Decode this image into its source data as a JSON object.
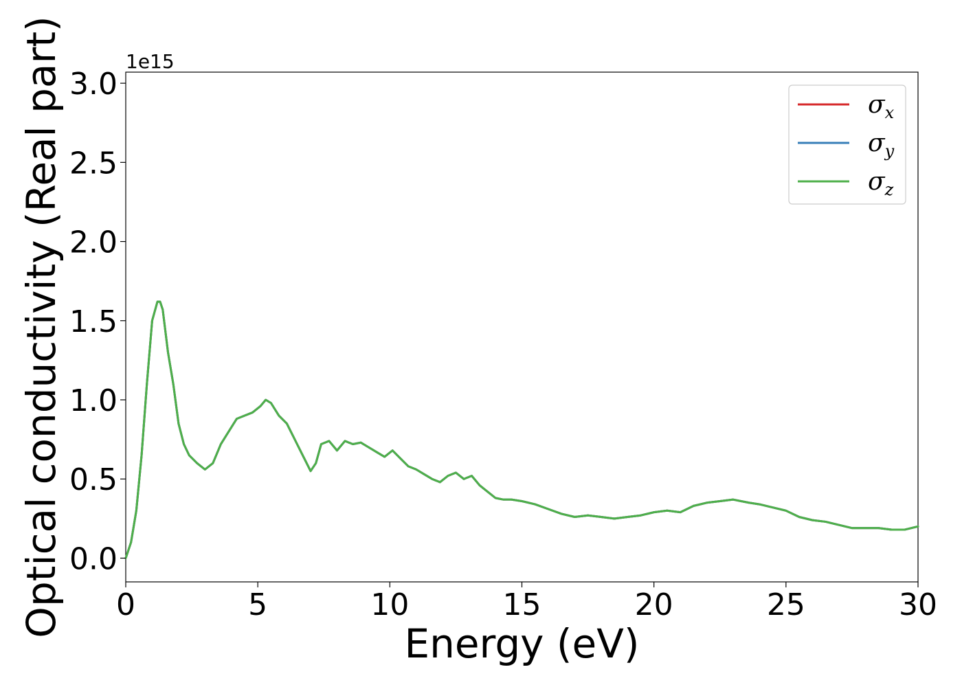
{
  "chart_data": {
    "type": "line",
    "title": "",
    "xlabel": "Energy (eV)",
    "ylabel": "Optical conductivity (Real part)",
    "y_offset_label": "1e15",
    "xlim": [
      0,
      30
    ],
    "ylim": [
      -0.15,
      3.07
    ],
    "x_ticks": [
      0,
      5,
      10,
      15,
      20,
      25,
      30
    ],
    "x_tick_labels": [
      "0",
      "5",
      "10",
      "15",
      "20",
      "25",
      "30"
    ],
    "y_ticks": [
      0.0,
      0.5,
      1.0,
      1.5,
      2.0,
      2.5,
      3.0
    ],
    "y_tick_labels": [
      "0.0",
      "0.5",
      "1.0",
      "1.5",
      "2.0",
      "2.5",
      "3.0"
    ],
    "grid": false,
    "legend_position": "top-right",
    "x": [
      0,
      0.2,
      0.4,
      0.6,
      0.8,
      1.0,
      1.2,
      1.3,
      1.4,
      1.6,
      1.8,
      2.0,
      2.2,
      2.4,
      2.7,
      3.0,
      3.3,
      3.6,
      3.9,
      4.2,
      4.5,
      4.8,
      5.1,
      5.3,
      5.5,
      5.8,
      6.1,
      6.4,
      6.7,
      7.0,
      7.2,
      7.4,
      7.7,
      8.0,
      8.3,
      8.6,
      8.9,
      9.2,
      9.5,
      9.8,
      10.1,
      10.4,
      10.7,
      11.0,
      11.3,
      11.6,
      11.9,
      12.2,
      12.5,
      12.8,
      13.1,
      13.4,
      13.7,
      14.0,
      14.3,
      14.6,
      15.0,
      15.5,
      16.0,
      16.5,
      17.0,
      17.5,
      18.0,
      18.5,
      19.0,
      19.5,
      20.0,
      20.5,
      21.0,
      21.5,
      22.0,
      22.5,
      23.0,
      23.3,
      23.6,
      24.0,
      24.5,
      25.0,
      25.5,
      26.0,
      26.5,
      27.0,
      27.5,
      28.0,
      28.5,
      29.0,
      29.5,
      30.0
    ],
    "series": [
      {
        "name": "σx",
        "color": "#d62728",
        "values": [
          0.0,
          0.1,
          0.3,
          0.65,
          1.1,
          1.5,
          1.62,
          1.62,
          1.57,
          1.3,
          1.1,
          0.85,
          0.72,
          0.65,
          0.6,
          0.56,
          0.6,
          0.72,
          0.8,
          0.88,
          0.9,
          0.92,
          0.96,
          1.0,
          0.98,
          0.9,
          0.85,
          0.75,
          0.65,
          0.55,
          0.6,
          0.72,
          0.74,
          0.68,
          0.74,
          0.72,
          0.73,
          0.7,
          0.67,
          0.64,
          0.68,
          0.63,
          0.58,
          0.56,
          0.53,
          0.5,
          0.48,
          0.52,
          0.54,
          0.5,
          0.52,
          0.46,
          0.42,
          0.38,
          0.37,
          0.37,
          0.36,
          0.34,
          0.31,
          0.28,
          0.26,
          0.27,
          0.26,
          0.25,
          0.26,
          0.27,
          0.29,
          0.3,
          0.29,
          0.33,
          0.35,
          0.36,
          0.37,
          0.36,
          0.35,
          0.34,
          0.32,
          0.3,
          0.26,
          0.24,
          0.23,
          0.21,
          0.19,
          0.19,
          0.19,
          0.18,
          0.18,
          0.2
        ]
      },
      {
        "name": "σy",
        "color": "#377eb8",
        "values": [
          0.0,
          0.1,
          0.3,
          0.65,
          1.1,
          1.5,
          1.62,
          1.62,
          1.57,
          1.3,
          1.1,
          0.85,
          0.72,
          0.65,
          0.6,
          0.56,
          0.6,
          0.72,
          0.8,
          0.88,
          0.9,
          0.92,
          0.96,
          1.0,
          0.98,
          0.9,
          0.85,
          0.75,
          0.65,
          0.55,
          0.6,
          0.72,
          0.74,
          0.68,
          0.74,
          0.72,
          0.73,
          0.7,
          0.67,
          0.64,
          0.68,
          0.63,
          0.58,
          0.56,
          0.53,
          0.5,
          0.48,
          0.52,
          0.54,
          0.5,
          0.52,
          0.46,
          0.42,
          0.38,
          0.37,
          0.37,
          0.36,
          0.34,
          0.31,
          0.28,
          0.26,
          0.27,
          0.26,
          0.25,
          0.26,
          0.27,
          0.29,
          0.3,
          0.29,
          0.33,
          0.35,
          0.36,
          0.37,
          0.36,
          0.35,
          0.34,
          0.32,
          0.3,
          0.26,
          0.24,
          0.23,
          0.21,
          0.19,
          0.19,
          0.19,
          0.18,
          0.18,
          0.2
        ]
      },
      {
        "name": "σz",
        "color": "#4daf4a",
        "values": [
          0.0,
          0.1,
          0.3,
          0.65,
          1.1,
          1.5,
          1.62,
          1.62,
          1.57,
          1.3,
          1.1,
          0.85,
          0.72,
          0.65,
          0.6,
          0.56,
          0.6,
          0.72,
          0.8,
          0.88,
          0.9,
          0.92,
          0.96,
          1.0,
          0.98,
          0.9,
          0.85,
          0.75,
          0.65,
          0.55,
          0.6,
          0.72,
          0.74,
          0.68,
          0.74,
          0.72,
          0.73,
          0.7,
          0.67,
          0.64,
          0.68,
          0.63,
          0.58,
          0.56,
          0.53,
          0.5,
          0.48,
          0.52,
          0.54,
          0.5,
          0.52,
          0.46,
          0.42,
          0.38,
          0.37,
          0.37,
          0.36,
          0.34,
          0.31,
          0.28,
          0.26,
          0.27,
          0.26,
          0.25,
          0.26,
          0.27,
          0.29,
          0.3,
          0.29,
          0.33,
          0.35,
          0.36,
          0.37,
          0.36,
          0.35,
          0.34,
          0.32,
          0.3,
          0.26,
          0.24,
          0.23,
          0.21,
          0.19,
          0.19,
          0.19,
          0.18,
          0.18,
          0.2
        ]
      }
    ],
    "legend": [
      {
        "symbol": "σ",
        "subscript": "x",
        "color": "#d62728"
      },
      {
        "symbol": "σ",
        "subscript": "y",
        "color": "#377eb8"
      },
      {
        "symbol": "σ",
        "subscript": "z",
        "color": "#4daf4a"
      }
    ]
  }
}
